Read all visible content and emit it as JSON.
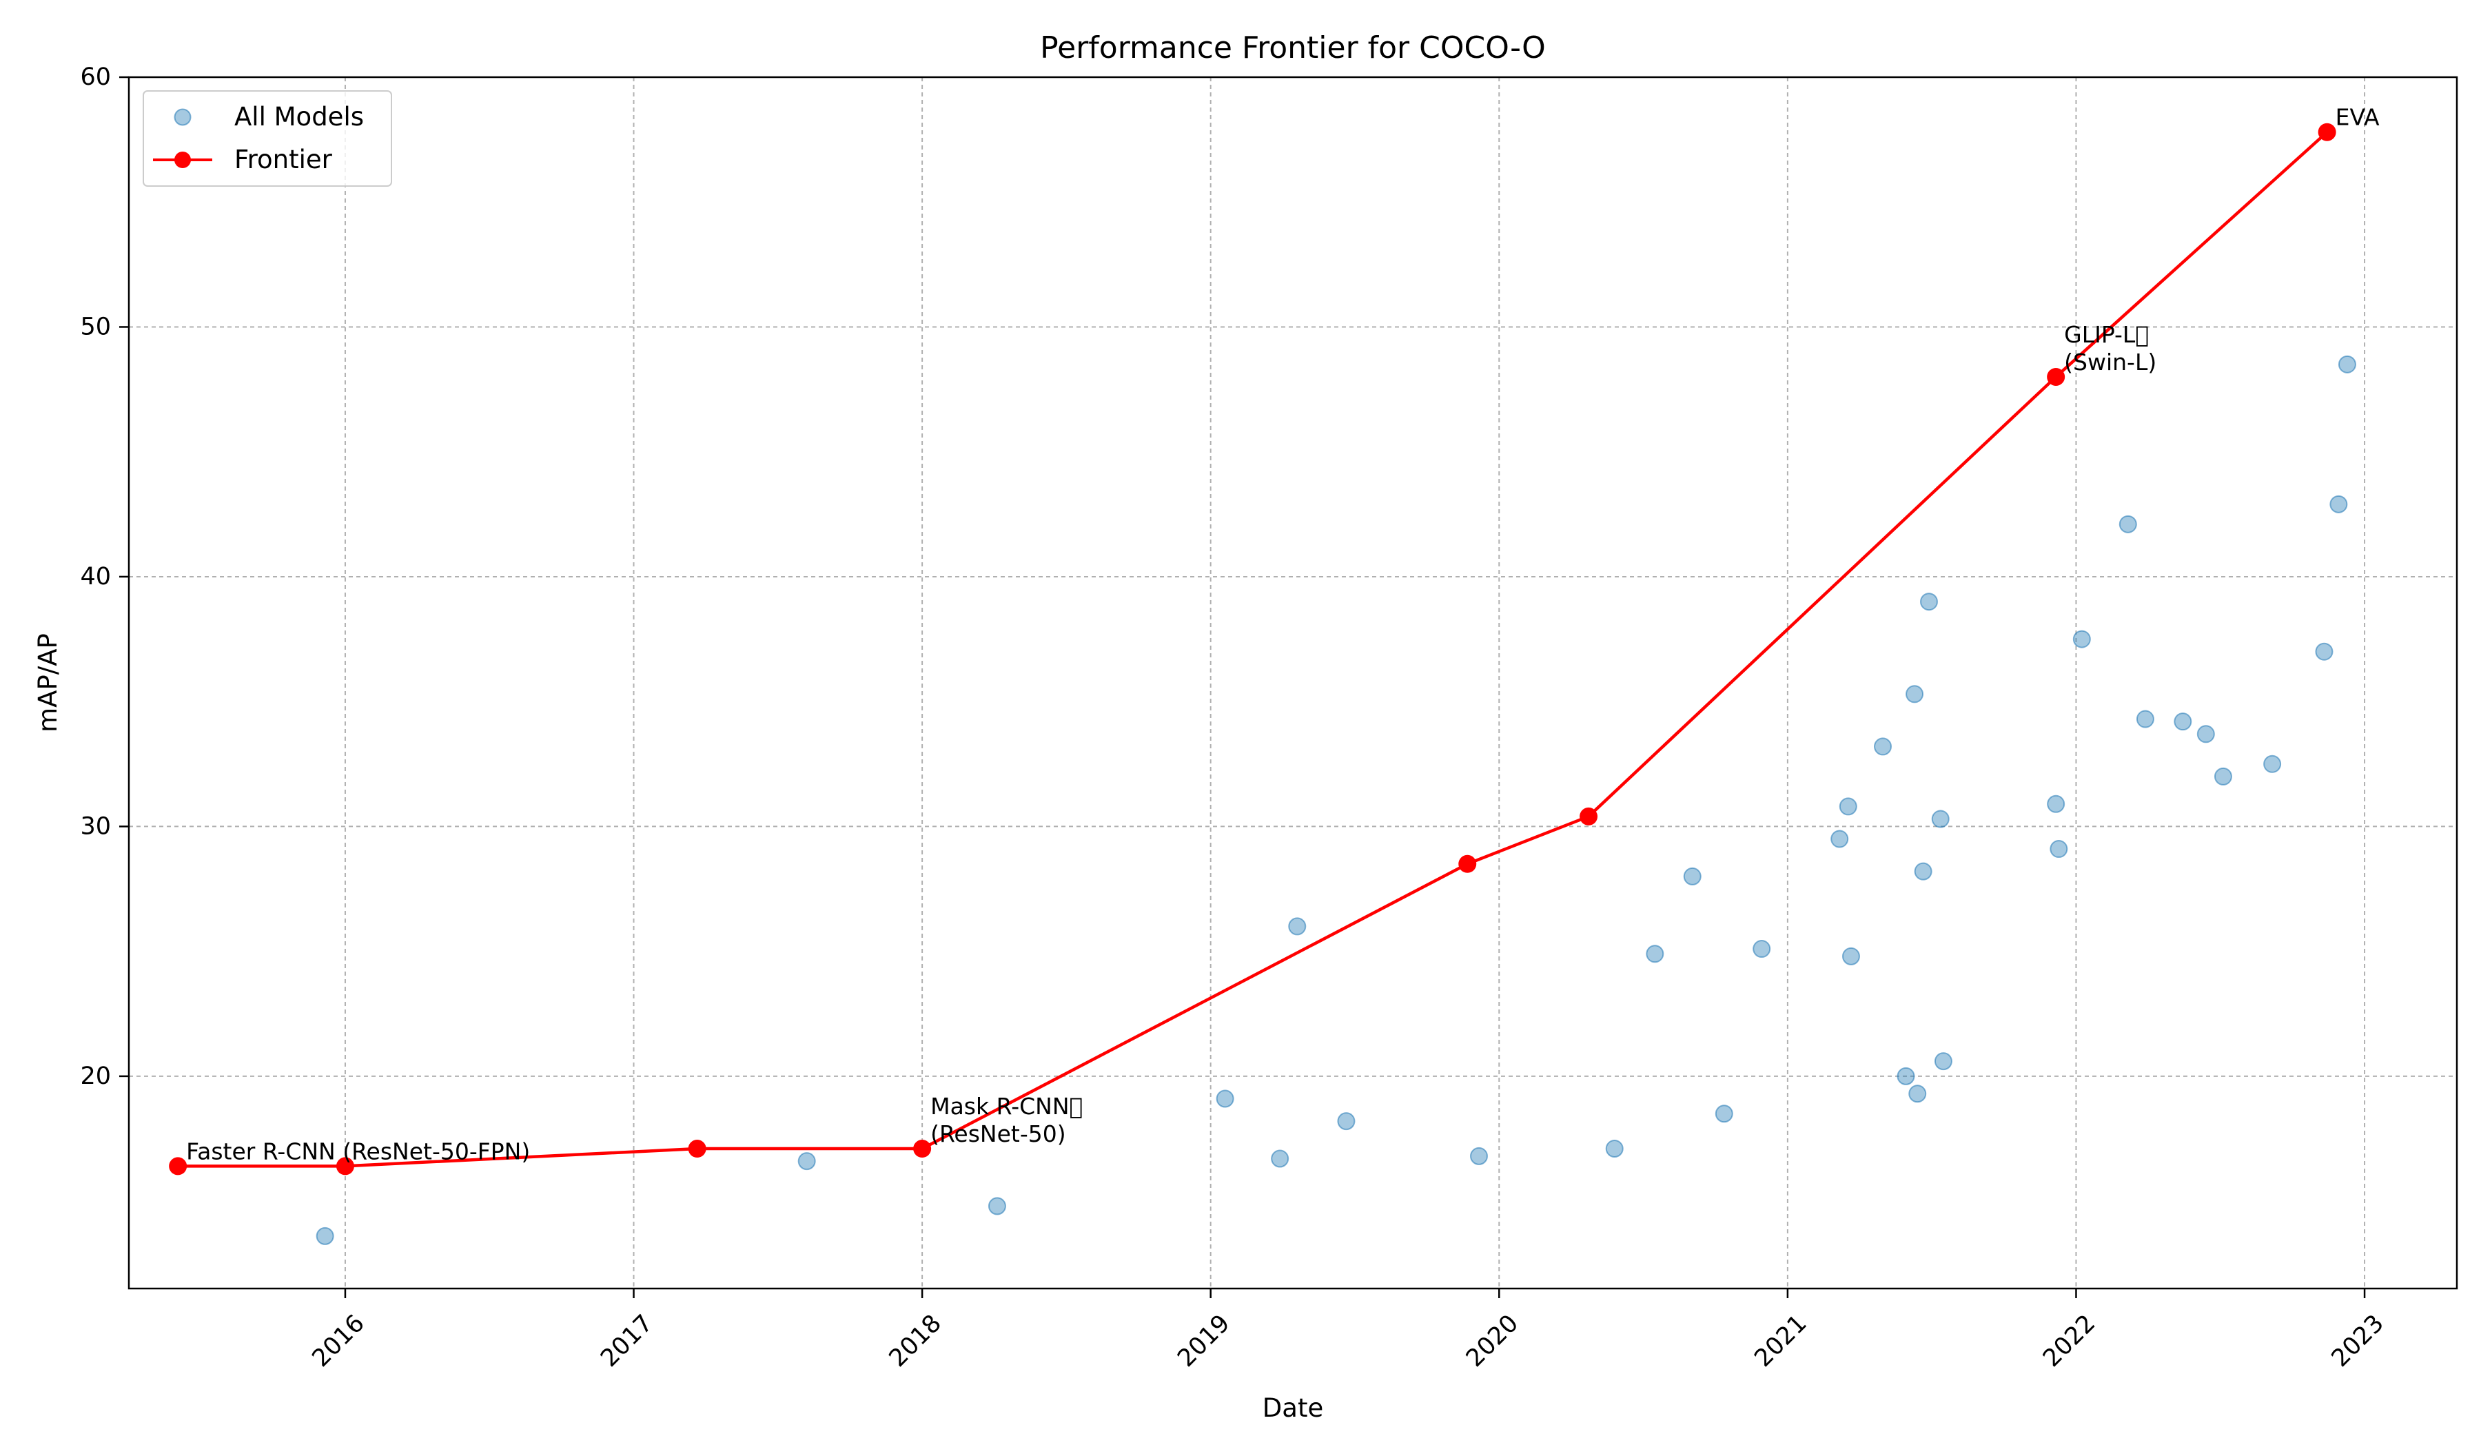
{
  "chart_data": {
    "type": "scatter",
    "title": "Performance Frontier for COCO-O",
    "xlabel": "Date",
    "ylabel": "mAP/AP",
    "xlim": [
      2015.25,
      2023.32
    ],
    "ylim": [
      11.5,
      60
    ],
    "x_ticks": [
      2016,
      2017,
      2018,
      2019,
      2020,
      2021,
      2022,
      2023
    ],
    "y_ticks": [
      20,
      30,
      40,
      50,
      60
    ],
    "grid": true,
    "legend_position": "top-left",
    "legend": [
      {
        "label": "All Models",
        "marker": "scatter"
      },
      {
        "label": "Frontier",
        "marker": "line"
      }
    ],
    "colors": {
      "scatter": "#1f77b4",
      "frontier": "#ff0000"
    },
    "series": [
      {
        "name": "All Models",
        "type": "scatter",
        "points": [
          [
            2015.93,
            13.6
          ],
          [
            2017.6,
            16.6
          ],
          [
            2018.26,
            14.8
          ],
          [
            2019.05,
            19.1
          ],
          [
            2019.24,
            16.7
          ],
          [
            2019.3,
            26.0
          ],
          [
            2019.47,
            18.2
          ],
          [
            2019.93,
            16.8
          ],
          [
            2020.4,
            17.1
          ],
          [
            2020.54,
            24.9
          ],
          [
            2020.67,
            28.0
          ],
          [
            2020.78,
            18.5
          ],
          [
            2020.91,
            25.1
          ],
          [
            2021.18,
            29.5
          ],
          [
            2021.21,
            30.8
          ],
          [
            2021.22,
            24.8
          ],
          [
            2021.33,
            33.2
          ],
          [
            2021.41,
            20.0
          ],
          [
            2021.44,
            35.3
          ],
          [
            2021.45,
            19.3
          ],
          [
            2021.47,
            28.2
          ],
          [
            2021.49,
            39.0
          ],
          [
            2021.53,
            30.3
          ],
          [
            2021.54,
            20.6
          ],
          [
            2021.93,
            30.9
          ],
          [
            2021.94,
            29.1
          ],
          [
            2022.02,
            37.5
          ],
          [
            2022.18,
            42.1
          ],
          [
            2022.24,
            34.3
          ],
          [
            2022.37,
            34.2
          ],
          [
            2022.45,
            33.7
          ],
          [
            2022.51,
            32.0
          ],
          [
            2022.68,
            32.5
          ],
          [
            2022.86,
            37.0
          ],
          [
            2022.91,
            42.9
          ],
          [
            2022.94,
            48.5
          ]
        ]
      },
      {
        "name": "Frontier",
        "type": "line",
        "points": [
          [
            2015.42,
            16.4
          ],
          [
            2016.0,
            16.4
          ],
          [
            2017.22,
            17.1
          ],
          [
            2018.0,
            17.1
          ],
          [
            2019.89,
            28.5
          ],
          [
            2020.31,
            30.4
          ],
          [
            2021.93,
            48.0
          ],
          [
            2022.87,
            57.8
          ]
        ]
      }
    ],
    "annotations": [
      {
        "lines": [
          "Faster R-CNN (ResNet-50-FPN)"
        ],
        "x": 2015.42,
        "y": 16.4
      },
      {
        "lines": [
          "Mask R-CNN\u0000",
          "(ResNet-50)"
        ],
        "x": 2018.0,
        "y": 17.1
      },
      {
        "lines": [
          "GLIP-L\u0000",
          "(Swin-L)"
        ],
        "x": 2021.93,
        "y": 48.0
      },
      {
        "lines": [
          "EVA"
        ],
        "x": 2022.87,
        "y": 57.8
      }
    ]
  }
}
